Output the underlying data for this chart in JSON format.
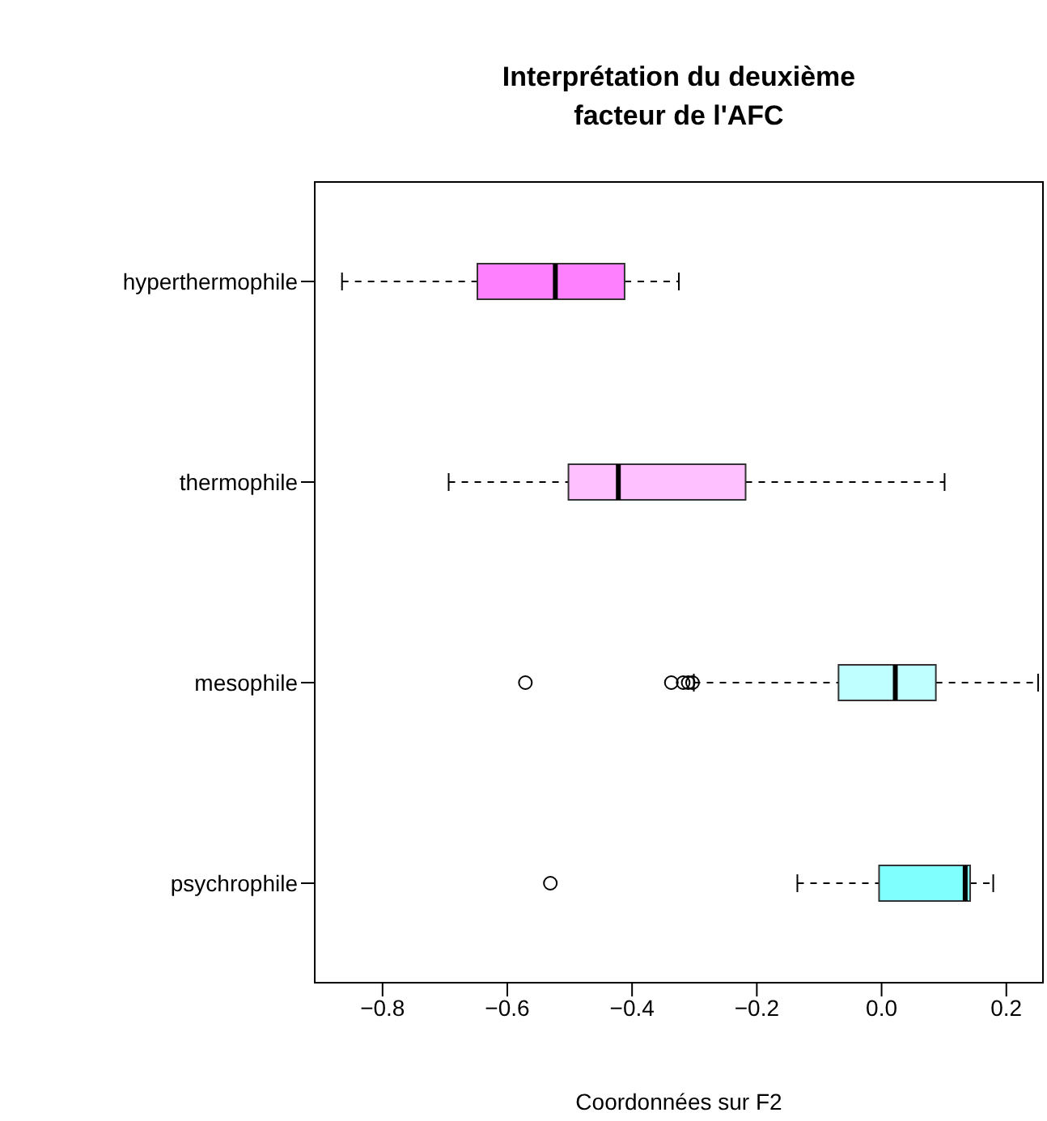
{
  "chart_data": {
    "type": "box",
    "title": "Interprétation du deuxième facteur de l'AFC",
    "xlabel": "Coordonnées sur F2",
    "orientation": "horizontal",
    "categories": [
      "hyperthermophile",
      "thermophile",
      "mesophile",
      "psychrophile"
    ],
    "colors": [
      "#ff80ff",
      "#ffc0ff",
      "#c0ffff",
      "#80ffff"
    ],
    "boxes": [
      {
        "low": -0.865,
        "q1": -0.648,
        "median": -0.523,
        "q3": -0.412,
        "high": -0.325
      },
      {
        "low": -0.694,
        "q1": -0.502,
        "median": -0.422,
        "q3": -0.218,
        "high": 0.101
      },
      {
        "low": -0.301,
        "q1": -0.069,
        "median": 0.022,
        "q3": 0.087,
        "high": 0.251,
        "outliers": [
          -0.571,
          -0.337,
          -0.318,
          -0.31,
          -0.303
        ]
      },
      {
        "low": -0.135,
        "q1": -0.004,
        "median": 0.134,
        "q3": 0.142,
        "high": 0.179,
        "outliers": [
          -0.531
        ]
      }
    ],
    "xlim": [
      -0.91,
      0.26
    ],
    "xticks": [
      {
        "value": -0.8,
        "label": "−0.8"
      },
      {
        "value": -0.6,
        "label": "−0.6"
      },
      {
        "value": -0.4,
        "label": "−0.4"
      },
      {
        "value": -0.2,
        "label": "−0.2"
      },
      {
        "value": 0,
        "label": "0.0"
      },
      {
        "value": 0.2,
        "label": "0.2"
      }
    ],
    "legend": false,
    "grid": false
  }
}
